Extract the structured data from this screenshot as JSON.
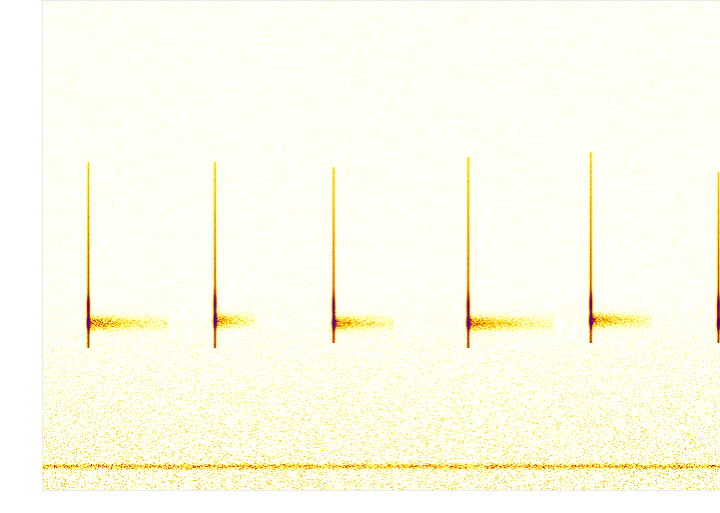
{
  "chart_data": {
    "type": "spectrogram",
    "tick_labels": false,
    "xlim": [
      0,
      6.8
    ],
    "ylim": [
      0,
      100
    ],
    "calls": {
      "time": [
        0.46,
        1.73,
        2.92,
        4.27,
        5.5,
        6.78
      ],
      "start_freq": [
        67,
        67,
        66,
        68,
        69,
        65
      ],
      "knee_freq": [
        34,
        34.5,
        34,
        34,
        34.5,
        34
      ],
      "end_freq": [
        29,
        29,
        30,
        29,
        30,
        30
      ],
      "tail_length": [
        0.8,
        0.4,
        0.6,
        0.85,
        0.6,
        0.0
      ]
    },
    "band_freq": 4.7
  }
}
